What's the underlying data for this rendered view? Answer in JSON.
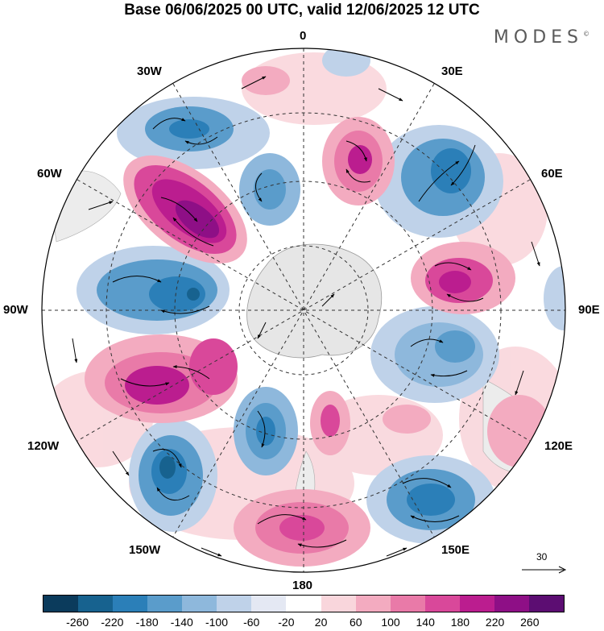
{
  "title": "Base 06/06/2025 00 UTC, valid 12/06/2025 12 UTC",
  "brand": "MODES",
  "brand_mark": "©",
  "meridian_labels": {
    "top": "0",
    "top_left": "30W",
    "top_right": "30E",
    "left_upper": "60W",
    "right_upper": "60E",
    "left": "90W",
    "right": "90E",
    "left_lower": "120W",
    "right_lower": "120E",
    "bottom_left": "150W",
    "bottom_right": "150E",
    "bottom": "180"
  },
  "reference_vector": "30",
  "colorbar": {
    "colors": [
      "#0b3b5c",
      "#17628f",
      "#2b7fb8",
      "#5a9ccb",
      "#8eb8dc",
      "#bfd2e9",
      "#e4e8f3",
      "#ffffff",
      "#f9d6dc",
      "#f3abc0",
      "#e97aa8",
      "#d9489a",
      "#bb1d8f",
      "#8e0f86",
      "#5c0d72"
    ],
    "ticks": [
      "-260",
      "-220",
      "-180",
      "-140",
      "-100",
      "-60",
      "-20",
      "20",
      "60",
      "100",
      "140",
      "180",
      "220",
      "260"
    ]
  }
}
